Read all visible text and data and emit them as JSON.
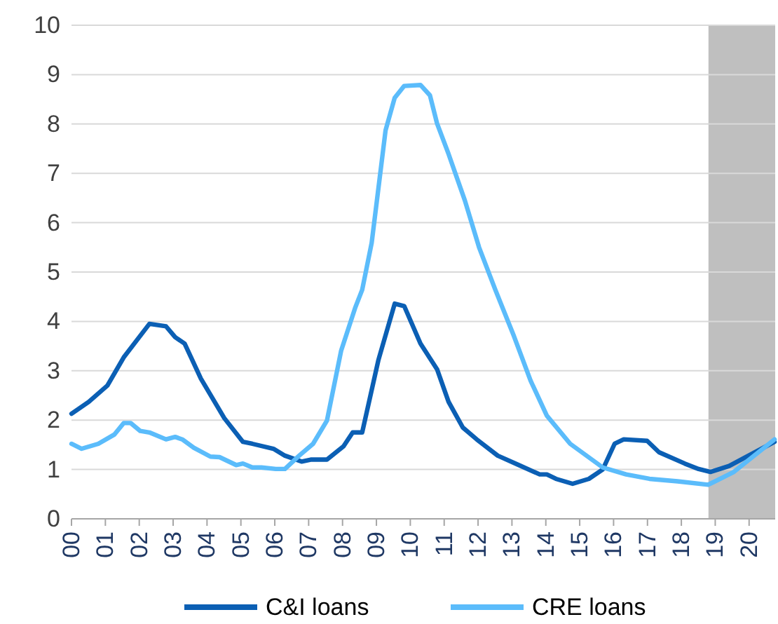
{
  "chart_data": {
    "type": "line",
    "xlim": [
      0,
      20.77
    ],
    "xticks": [
      {
        "value": 0,
        "label": "00"
      },
      {
        "value": 1,
        "label": "01"
      },
      {
        "value": 2,
        "label": "02"
      },
      {
        "value": 3,
        "label": "03"
      },
      {
        "value": 4,
        "label": "04"
      },
      {
        "value": 5,
        "label": "05"
      },
      {
        "value": 6,
        "label": "06"
      },
      {
        "value": 7,
        "label": "07"
      },
      {
        "value": 8,
        "label": "08"
      },
      {
        "value": 9,
        "label": "09"
      },
      {
        "value": 10,
        "label": "10"
      },
      {
        "value": 11,
        "label": "11"
      },
      {
        "value": 12,
        "label": "12"
      },
      {
        "value": 13,
        "label": "13"
      },
      {
        "value": 14,
        "label": "14"
      },
      {
        "value": 15,
        "label": "15"
      },
      {
        "value": 16,
        "label": "16"
      },
      {
        "value": 17,
        "label": "17"
      },
      {
        "value": 18,
        "label": "18"
      },
      {
        "value": 19,
        "label": "19"
      },
      {
        "value": 20,
        "label": "20"
      }
    ],
    "ylim": [
      0,
      10
    ],
    "yticks": [
      0,
      1,
      2,
      3,
      4,
      5,
      6,
      7,
      8,
      9,
      10
    ],
    "grid": "y",
    "legend": "bottom",
    "marker": "none",
    "line_style": "solid",
    "bands": [
      {
        "axis": "x",
        "from": 18.8,
        "to": 20.77,
        "color": "#bfbfbf"
      }
    ],
    "series": [
      {
        "name": "C&I loans",
        "color": "#0b5fb4",
        "x": [
          0,
          0.51,
          1.06,
          1.54,
          2.3,
          2.79,
          3.06,
          3.34,
          3.82,
          4.51,
          5.06,
          5.34,
          5.96,
          6.3,
          6.79,
          7.06,
          7.54,
          8.03,
          8.3,
          8.58,
          9.06,
          9.54,
          9.82,
          10.3,
          10.79,
          11.13,
          11.55,
          11.96,
          12.58,
          13.2,
          13.82,
          14.03,
          14.3,
          14.79,
          15.27,
          15.68,
          16.03,
          16.3,
          16.99,
          17.34,
          18.1,
          18.51,
          18.86,
          19.41,
          20.75
        ],
        "values": [
          2.13,
          2.37,
          2.7,
          3.27,
          3.95,
          3.9,
          3.68,
          3.55,
          2.84,
          2.04,
          1.56,
          1.52,
          1.42,
          1.28,
          1.16,
          1.2,
          1.2,
          1.47,
          1.75,
          1.75,
          3.22,
          4.36,
          4.31,
          3.55,
          3.03,
          2.37,
          1.85,
          1.61,
          1.28,
          1.09,
          0.9,
          0.9,
          0.81,
          0.71,
          0.81,
          1.0,
          1.52,
          1.61,
          1.58,
          1.35,
          1.12,
          1.01,
          0.95,
          1.07,
          1.56
        ]
      },
      {
        "name": "CRE loans",
        "color": "#5bbcfb",
        "x": [
          0,
          0.3,
          0.79,
          1.27,
          1.54,
          1.75,
          2.03,
          2.3,
          2.79,
          3.06,
          3.27,
          3.61,
          4.1,
          4.37,
          4.86,
          5.06,
          5.34,
          5.61,
          6.03,
          6.3,
          6.72,
          7.13,
          7.54,
          7.96,
          8.37,
          8.58,
          8.86,
          9.27,
          9.54,
          9.82,
          10.3,
          10.58,
          10.79,
          11.13,
          11.61,
          12.03,
          12.51,
          13.06,
          13.55,
          14.03,
          14.72,
          15.68,
          16.37,
          17.06,
          17.89,
          18.79,
          19.55,
          20.75
        ],
        "values": [
          1.52,
          1.42,
          1.52,
          1.71,
          1.94,
          1.94,
          1.78,
          1.75,
          1.61,
          1.66,
          1.61,
          1.44,
          1.26,
          1.25,
          1.09,
          1.12,
          1.04,
          1.04,
          1.01,
          1.01,
          1.28,
          1.52,
          1.99,
          3.41,
          4.27,
          4.64,
          5.59,
          7.87,
          8.53,
          8.77,
          8.79,
          8.58,
          8.01,
          7.39,
          6.45,
          5.5,
          4.64,
          3.7,
          2.8,
          2.09,
          1.52,
          1.04,
          0.9,
          0.81,
          0.76,
          0.69,
          0.95,
          1.61
        ]
      }
    ]
  }
}
